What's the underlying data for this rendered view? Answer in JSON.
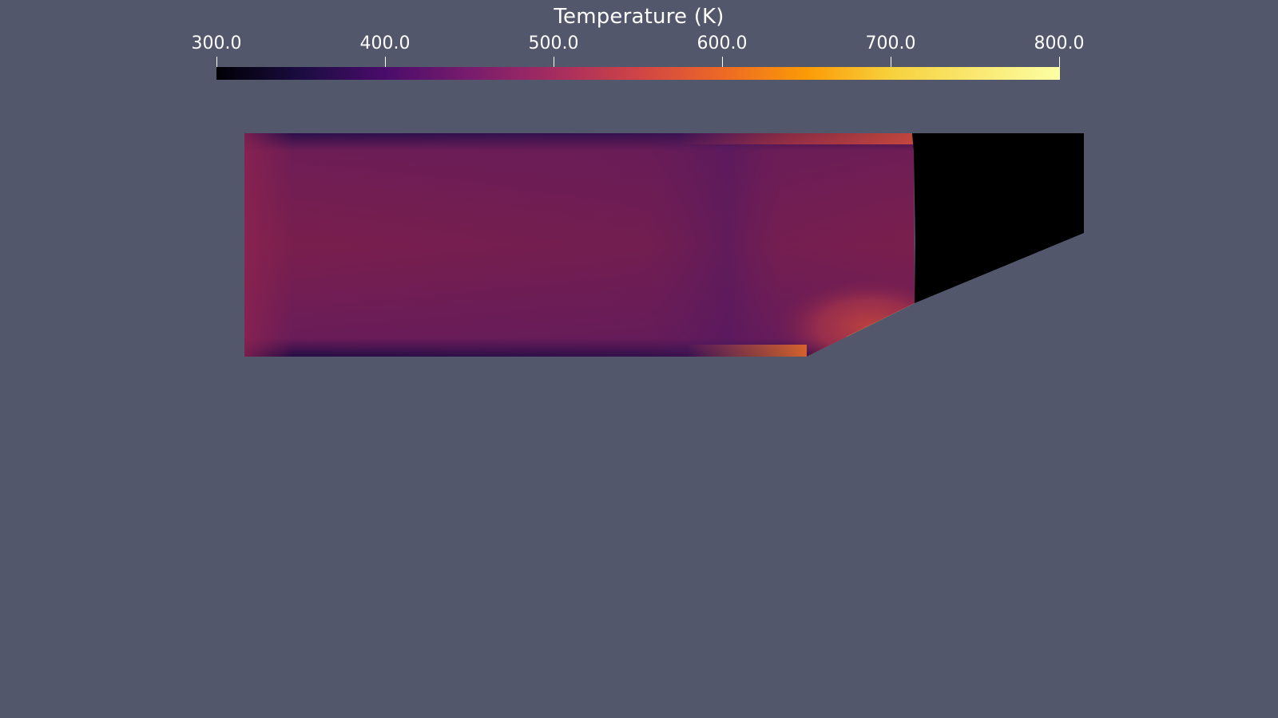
{
  "colorbar": {
    "title": "Temperature (K)",
    "colormap": "inferno",
    "range": [
      300.0,
      800.0
    ],
    "ticks": [
      "300.0",
      "400.0",
      "500.0",
      "600.0",
      "700.0",
      "800.0"
    ]
  },
  "colors": {
    "background": "#52576b",
    "solid_region": "#000000"
  }
}
